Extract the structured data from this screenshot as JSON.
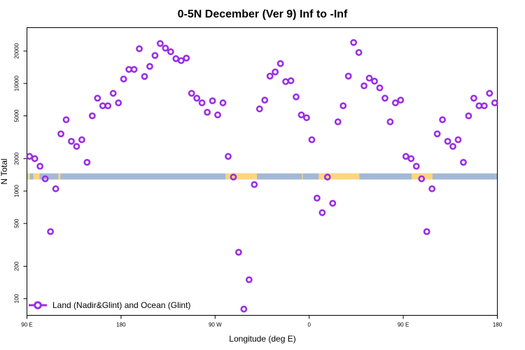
{
  "chart_data": {
    "type": "scatter",
    "title": "0-5N December (Ver 9)   Inf to -Inf",
    "xlabel": "Longitude (deg E)",
    "ylabel": "N Total",
    "y_scale": "log",
    "xlim": [
      0,
      450
    ],
    "ylim": [
      70,
      33000
    ],
    "x_ticks": [
      {
        "value": 0,
        "label": "90 E"
      },
      {
        "value": 90,
        "label": "180"
      },
      {
        "value": 180,
        "label": "90 W"
      },
      {
        "value": 270,
        "label": "0"
      },
      {
        "value": 360,
        "label": "90 E"
      },
      {
        "value": 450,
        "label": "180"
      }
    ],
    "y_ticks": [
      {
        "value": 100,
        "label": "100"
      },
      {
        "value": 200,
        "label": "200"
      },
      {
        "value": 500,
        "label": "500"
      },
      {
        "value": 1000,
        "label": "1000"
      },
      {
        "value": 2000,
        "label": "2000"
      },
      {
        "value": 5000,
        "label": "5000"
      },
      {
        "value": 10000,
        "label": "10000"
      },
      {
        "value": 20000,
        "label": "20000"
      }
    ],
    "land_ocean_band": {
      "ocean_color": "#a3b8d6",
      "land_color": "#fcd680",
      "y_range": [
        1280,
        1460
      ],
      "land_segments": [
        [
          0,
          3
        ],
        [
          6,
          12
        ],
        [
          30,
          32
        ],
        [
          190,
          220
        ],
        [
          263,
          264
        ],
        [
          279,
          318
        ],
        [
          368,
          388
        ]
      ]
    },
    "series": [
      {
        "name": "Land (Nadir&Glint) and Ocean (Glint)",
        "color": "#9a2fe3",
        "x": [
          2.5,
          7.5,
          12.5,
          17.5,
          22.5,
          27.5,
          32.5,
          37.5,
          42.5,
          47.5,
          52.5,
          57.5,
          62.5,
          67.5,
          72.5,
          77.5,
          82.5,
          87.5,
          92.5,
          97.5,
          102.5,
          107.5,
          112.5,
          117.5,
          122.5,
          127.5,
          132.5,
          137.5,
          142.5,
          147.5,
          152.5,
          157.5,
          162.5,
          167.5,
          172.5,
          177.5,
          182.5,
          187.5,
          192.5,
          197.5,
          202.5,
          207.5,
          212.5,
          217.5,
          222.5,
          227.5,
          232.5,
          237.5,
          242.5,
          247.5,
          252.5,
          257.5,
          262.5,
          267.5,
          272.5,
          277.5,
          282.5,
          287.5,
          292.5,
          297.5,
          302.5,
          307.5,
          312.5,
          317.5,
          322.5,
          327.5,
          332.5,
          337.5,
          342.5,
          347.5,
          352.5,
          357.5,
          362.5,
          367.5,
          372.5,
          377.5,
          382.5,
          387.5,
          392.5,
          397.5,
          402.5,
          407.5,
          412.5,
          417.5,
          422.5,
          427.5,
          432.5,
          437.5,
          442.5,
          447.5
        ],
        "y": [
          2100,
          2000,
          1700,
          1300,
          420,
          1050,
          3400,
          4600,
          2900,
          2600,
          3000,
          1850,
          5000,
          7300,
          6200,
          6200,
          8100,
          6600,
          11000,
          13500,
          13500,
          21000,
          11600,
          14400,
          18200,
          23500,
          21300,
          19700,
          17000,
          16300,
          17200,
          8100,
          7300,
          6600,
          5400,
          6900,
          5100,
          6600,
          2100,
          1350,
          270,
          80,
          150,
          1150,
          5800,
          7000,
          11700,
          12800,
          15300,
          10400,
          10600,
          7500,
          5100,
          4800,
          3000,
          860,
          630,
          1350,
          770,
          4400,
          6200,
          11700,
          24000,
          19400,
          9500,
          11200,
          10500,
          9100,
          7300,
          4400,
          6600,
          7000,
          2100,
          2000,
          1700,
          1300,
          420,
          1050,
          3400,
          4600,
          2900,
          2600,
          3000,
          1850,
          5000,
          7300,
          6200,
          6200,
          8100,
          6600
        ]
      }
    ],
    "legend": {
      "location": "bottom-left"
    }
  }
}
